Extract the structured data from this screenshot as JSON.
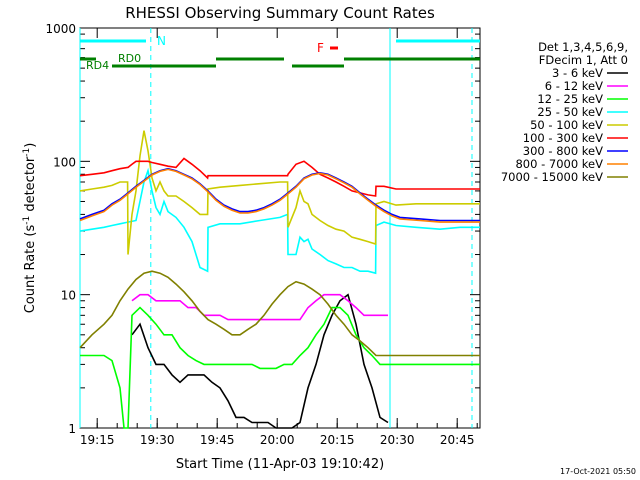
{
  "chart_data": {
    "type": "line",
    "title": "RHESSI Observing Summary Count Rates",
    "xlabel": "Start Time (11-Apr-03 19:10:42)",
    "ylabel_main": "Count Rate (s",
    "ylabel_sup1": "-1",
    "ylabel_mid": " detector",
    "ylabel_sup2": "-1",
    "ylabel_end": ")",
    "yscale": "log",
    "ylim": [
      1,
      1000
    ],
    "x_unit": "minutes from 19:10:42",
    "xlim": [
      0,
      100
    ],
    "x_ticks": [
      {
        "label": "19:15",
        "t": 4.3
      },
      {
        "label": "19:30",
        "t": 19.3
      },
      {
        "label": "19:45",
        "t": 34.3
      },
      {
        "label": "20:00",
        "t": 49.3
      },
      {
        "label": "20:15",
        "t": 64.3
      },
      {
        "label": "20:30",
        "t": 79.3
      },
      {
        "label": "20:45",
        "t": 94.3
      }
    ],
    "y_ticks": [
      {
        "label": "1",
        "v": 1
      },
      {
        "label": "10",
        "v": 10
      },
      {
        "label": "100",
        "v": 100
      },
      {
        "label": "1000",
        "v": 1000
      }
    ],
    "legend": {
      "header1": "Det 1,3,4,5,6,9,",
      "header2": "FDecim 1, Att 0",
      "placement": "right-outside"
    },
    "annotations": {
      "N": "N",
      "F": "F",
      "RD0": "RD0",
      "RD4": "RD4",
      "timestamp": "17-Oct-2021 05:50"
    },
    "night_lines": [
      {
        "t": 0,
        "style": "solid"
      },
      {
        "t": 17.7,
        "style": "dashed"
      },
      {
        "t": 77.5,
        "style": "solid"
      },
      {
        "t": 98,
        "style": "dashed"
      }
    ],
    "series": [
      {
        "name": "3 - 6 keV",
        "color": "#000000",
        "t": [
          13,
          15,
          17,
          19,
          21,
          23,
          25,
          27,
          29,
          31,
          33,
          35,
          37,
          39,
          41,
          43,
          45,
          47,
          49,
          51,
          53,
          55,
          57,
          59,
          61,
          63,
          65,
          67,
          69,
          71,
          73,
          75,
          77
        ],
        "values": [
          5,
          6,
          4,
          3,
          3,
          2.5,
          2.2,
          2.5,
          2.5,
          2.5,
          2.2,
          2,
          1.6,
          1.2,
          1.2,
          1.1,
          1.1,
          1.1,
          1,
          1,
          1,
          1.1,
          2,
          3,
          5,
          7,
          9,
          10,
          6,
          3,
          2,
          1.2,
          1.1
        ]
      },
      {
        "name": "6 - 12 keV",
        "color": "#ff00ff",
        "t": [
          13,
          15,
          17,
          19,
          21,
          23,
          25,
          27,
          29,
          31,
          33,
          35,
          37,
          39,
          41,
          43,
          45,
          47,
          49,
          51,
          53,
          55,
          57,
          59,
          61,
          63,
          65,
          67,
          69,
          71,
          73,
          75,
          77
        ],
        "values": [
          9,
          10,
          10,
          9,
          9,
          9,
          9,
          8,
          8,
          7,
          7,
          7,
          6.5,
          6.5,
          6.5,
          6.5,
          6.5,
          6.5,
          6.5,
          6.5,
          6.5,
          6.5,
          8,
          9,
          10,
          10,
          10,
          9,
          8,
          7,
          7,
          7,
          7
        ]
      },
      {
        "name": "12 - 25 keV",
        "color": "#00ff00",
        "t": [
          0,
          3,
          6,
          8,
          10,
          11,
          12,
          13,
          15,
          17,
          19,
          21,
          23,
          25,
          27,
          29,
          31,
          33,
          35,
          37,
          39,
          41,
          43,
          45,
          47,
          49,
          51,
          53,
          55,
          57,
          59,
          61,
          63,
          65,
          67,
          69,
          71,
          73,
          75,
          77,
          80,
          85,
          90,
          95,
          100
        ],
        "values": [
          3.5,
          3.5,
          3.5,
          3.2,
          2,
          1,
          1,
          7,
          8,
          7,
          6,
          5,
          5,
          4,
          3.5,
          3.2,
          3,
          3,
          3,
          3,
          3,
          3,
          3,
          2.8,
          2.8,
          2.8,
          3,
          3,
          3.5,
          4,
          5,
          6,
          8,
          8,
          7,
          5,
          4,
          3.5,
          3,
          3,
          3,
          3,
          3,
          3,
          3
        ]
      },
      {
        "name": "25 - 50 keV",
        "color": "#00ffff",
        "t": [
          0,
          3,
          6,
          8,
          10,
          12,
          14,
          16,
          17,
          18,
          19,
          20,
          21,
          22,
          24,
          26,
          28,
          30,
          31.9,
          32,
          35,
          40,
          45,
          50,
          51.9,
          52,
          54,
          55,
          56,
          57,
          58,
          60,
          62,
          64,
          66,
          68,
          70,
          72,
          73.9,
          74,
          76,
          79,
          84,
          90,
          95,
          100
        ],
        "values": [
          30,
          31,
          32,
          33,
          34,
          35,
          36,
          70,
          85,
          60,
          45,
          40,
          50,
          42,
          38,
          32,
          25,
          16,
          15,
          32,
          34,
          34,
          36,
          38,
          40,
          20,
          20,
          27,
          25,
          26,
          22,
          20,
          18,
          17,
          16,
          16,
          15,
          15,
          14.5,
          33,
          35,
          33,
          32,
          31,
          32,
          32
        ]
      },
      {
        "name": "50 - 100 keV",
        "color": "#cccc00",
        "t": [
          0,
          3,
          6,
          8,
          10,
          11.9,
          12,
          13,
          14,
          15,
          16,
          17,
          18,
          19,
          20,
          21,
          22,
          24,
          26,
          28,
          30,
          31.9,
          32,
          35,
          40,
          45,
          50,
          51.9,
          52,
          54,
          55,
          56,
          57,
          58,
          60,
          62,
          64,
          66,
          68,
          70,
          72,
          73.9,
          74,
          76,
          79,
          84,
          90,
          95,
          100
        ],
        "values": [
          60,
          62,
          64,
          66,
          70,
          70,
          20,
          40,
          60,
          110,
          170,
          120,
          75,
          60,
          70,
          60,
          55,
          55,
          50,
          45,
          40,
          40,
          62,
          64,
          66,
          68,
          70,
          70,
          32,
          45,
          60,
          50,
          48,
          40,
          36,
          33,
          31,
          30,
          27,
          26,
          25,
          24,
          48,
          50,
          47,
          48,
          48,
          48,
          48
        ]
      },
      {
        "name": "100 - 300 keV",
        "color": "#ff0000",
        "t": [
          0,
          3,
          6,
          8,
          10,
          11.9,
          12,
          13,
          14,
          15,
          16,
          17,
          18,
          20,
          22,
          24,
          26,
          28,
          30,
          31.9,
          32,
          35,
          40,
          45,
          50,
          51.9,
          52,
          54,
          56,
          58,
          60,
          62,
          64,
          66,
          68,
          70,
          72,
          73.9,
          74,
          76,
          79,
          84,
          90,
          95,
          100
        ],
        "values": [
          78,
          80,
          82,
          85,
          88,
          90,
          90,
          95,
          100,
          100,
          100,
          100,
          98,
          95,
          92,
          90,
          105,
          95,
          85,
          75,
          78,
          78,
          78,
          78,
          78,
          78,
          80,
          95,
          100,
          90,
          80,
          75,
          70,
          65,
          60,
          58,
          56,
          55,
          65,
          65,
          62,
          62,
          62,
          62,
          62
        ]
      },
      {
        "name": "300 - 800 keV",
        "color": "#0000ff",
        "t": [
          0,
          3,
          6,
          8,
          10,
          12,
          14,
          16,
          18,
          20,
          22,
          24,
          26,
          28,
          30,
          32,
          34,
          36,
          38,
          40,
          42,
          44,
          46,
          48,
          50,
          52,
          54,
          56,
          58,
          60,
          62,
          64,
          66,
          68,
          70,
          72,
          74,
          76,
          78,
          80,
          85,
          90,
          95,
          100
        ],
        "values": [
          37,
          40,
          43,
          48,
          52,
          58,
          65,
          72,
          80,
          85,
          88,
          85,
          80,
          75,
          68,
          60,
          52,
          47,
          44,
          42,
          42,
          43,
          45,
          48,
          52,
          58,
          65,
          75,
          80,
          82,
          80,
          75,
          70,
          65,
          58,
          52,
          47,
          43,
          40,
          38,
          37,
          36,
          36,
          36
        ]
      },
      {
        "name": "800 - 7000 keV",
        "color": "#ff8000",
        "t": [
          0,
          3,
          6,
          8,
          10,
          12,
          14,
          16,
          18,
          20,
          22,
          24,
          26,
          28,
          30,
          32,
          34,
          36,
          38,
          40,
          42,
          44,
          46,
          48,
          50,
          52,
          54,
          56,
          58,
          60,
          62,
          64,
          66,
          68,
          70,
          72,
          74,
          76,
          78,
          80,
          85,
          90,
          95,
          100
        ],
        "values": [
          36,
          39,
          42,
          47,
          51,
          57,
          64,
          71,
          79,
          84,
          87,
          84,
          79,
          74,
          67,
          59,
          51,
          46,
          43,
          41,
          41,
          42,
          44,
          47,
          51,
          57,
          64,
          74,
          79,
          81,
          79,
          74,
          69,
          64,
          57,
          51,
          46,
          42,
          39,
          37,
          36,
          35,
          35,
          35
        ]
      },
      {
        "name": "7000 - 15000 keV",
        "color": "#808000",
        "t": [
          0,
          3,
          6,
          8,
          10,
          12,
          14,
          16,
          18,
          20,
          22,
          24,
          26,
          28,
          30,
          32,
          34,
          36,
          38,
          40,
          42,
          44,
          46,
          48,
          50,
          52,
          54,
          56,
          58,
          60,
          62,
          64,
          66,
          68,
          70,
          72,
          74,
          76,
          78,
          80,
          85,
          90,
          95,
          100
        ],
        "values": [
          4,
          5,
          6,
          7,
          9,
          11,
          13,
          14.5,
          15,
          14.5,
          13.5,
          12,
          10.5,
          9,
          7.5,
          6.5,
          6,
          5.5,
          5,
          5,
          5.5,
          6,
          7,
          8.5,
          10,
          11.5,
          12.5,
          12,
          11,
          10,
          8.5,
          7,
          6,
          5,
          4.5,
          4,
          3.5,
          3.5,
          3.5,
          3.5,
          3.5,
          3.5,
          3.5,
          3.5
        ]
      }
    ],
    "status_bars": [
      {
        "name": "N",
        "color": "#00ffff",
        "segments": [
          [
            0,
            16.5
          ],
          [
            79,
            100
          ]
        ],
        "level": "top"
      },
      {
        "name": "F",
        "color": "#ff0000",
        "segments": [
          [
            58,
            62
          ]
        ],
        "level": "top"
      },
      {
        "name": "RD0",
        "color": "#008000",
        "segments": [
          [
            0,
            4
          ],
          [
            34,
            51
          ],
          [
            66,
            100
          ]
        ],
        "level": "mid"
      },
      {
        "name": "RD4",
        "color": "#008000",
        "segments": [
          [
            8,
            34
          ],
          [
            53,
            66
          ]
        ],
        "level": "low"
      }
    ]
  }
}
